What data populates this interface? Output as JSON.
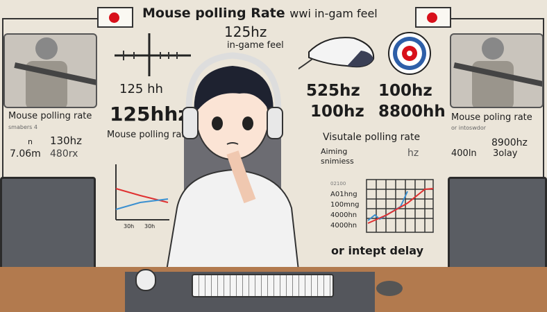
{
  "title": "Mouse polling Rate",
  "title_tail": "wwi in-gam feel",
  "subtitle_hz": "125hz",
  "subtitle_feel": "in-game feel",
  "left": {
    "crosshair_label": "125 hh",
    "big_hz": "125hhz",
    "center_caption": "Mouse polling rate",
    "panel_caption": "Mouse polling rate",
    "panel_sub": "smabers 4",
    "stat_a": "n",
    "stat_b": "130hz",
    "stat_c": "7.06m",
    "stat_d": "480rx",
    "chart_ticks": [
      "30h",
      "30h"
    ]
  },
  "right": {
    "hz_grid": [
      "525hz",
      "100hz",
      "100hz",
      "8800hh"
    ],
    "visual_caption": "Visutale polling rate",
    "aiming": "Aiming",
    "smoothness": "snimiess",
    "hz_unit": "hz",
    "panel_caption": "Mouse poling rate",
    "panel_sub": "or intoswdor",
    "stat_a": "8900hz",
    "stat_b": "400ln",
    "stat_c": "3olay",
    "chart_labels": [
      "02100",
      "A01hng",
      "100mng",
      "4000hn",
      "4000hn"
    ],
    "bottom_caption": "or intept delay"
  },
  "colors": {
    "background": "#ebe5d9",
    "desk": "#b27a4e",
    "flag_red": "#d8101a",
    "target_blue": "#2e5fa8",
    "line_red": "#e03030",
    "line_blue": "#3a8fd0"
  }
}
